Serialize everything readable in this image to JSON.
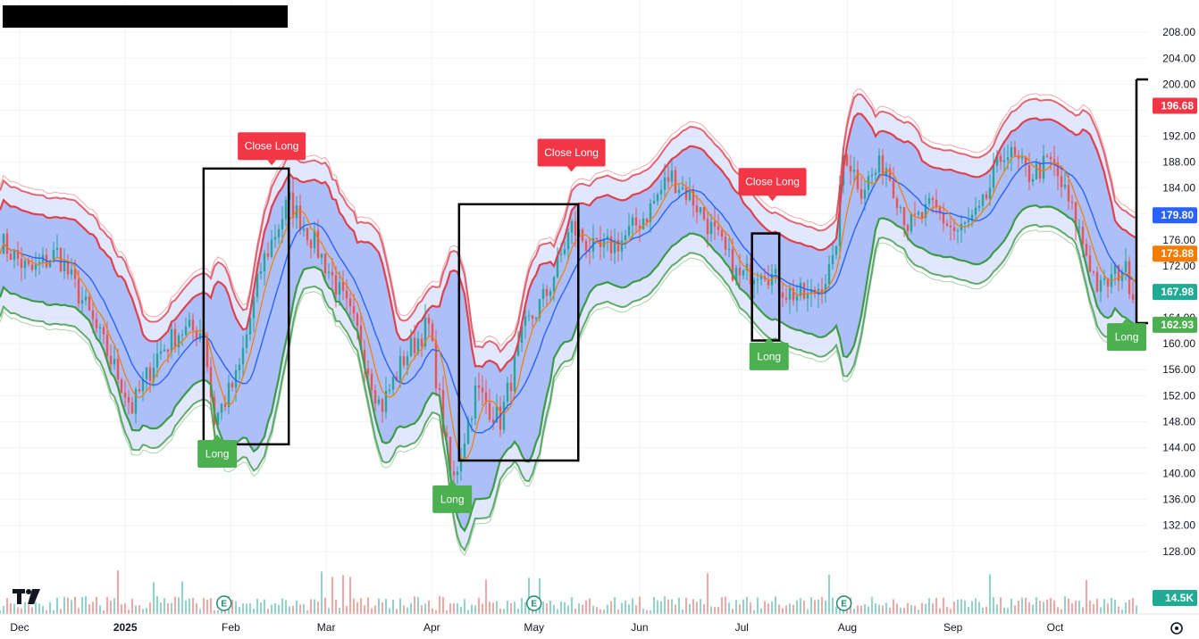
{
  "chart_data": {
    "type": "candlestick",
    "title": "",
    "y_ticks": [
      "208.00",
      "204.00",
      "200.00",
      "196.00",
      "192.00",
      "188.00",
      "184.00",
      "180.00",
      "176.00",
      "172.00",
      "168.00",
      "164.00",
      "160.00",
      "156.00",
      "152.00",
      "148.00",
      "144.00",
      "140.00",
      "136.00",
      "132.00",
      "128.00"
    ],
    "ylim": [
      125.5,
      210.5
    ],
    "x_ticks": [
      {
        "label": "Dec",
        "date": "2024-12-01"
      },
      {
        "label": "2025",
        "date": "2025-01-01"
      },
      {
        "label": "Feb",
        "date": "2025-02-01"
      },
      {
        "label": "Mar",
        "date": "2025-03-01"
      },
      {
        "label": "Apr",
        "date": "2025-04-01"
      },
      {
        "label": "May",
        "date": "2025-05-01"
      },
      {
        "label": "Jun",
        "date": "2025-06-01"
      },
      {
        "label": "Jul",
        "date": "2025-07-01"
      },
      {
        "label": "Aug",
        "date": "2025-08-01"
      },
      {
        "label": "Sep",
        "date": "2025-09-01"
      },
      {
        "label": "Oct",
        "date": "2025-10-01"
      }
    ],
    "price_path": [
      [
        "2024-11-25",
        176
      ],
      [
        "2024-12-04",
        171
      ],
      [
        "2024-12-12",
        174
      ],
      [
        "2024-12-20",
        166
      ],
      [
        "2024-12-30",
        155
      ],
      [
        "2025-01-03",
        150
      ],
      [
        "2025-01-10",
        158
      ],
      [
        "2025-01-17",
        162
      ],
      [
        "2025-01-24",
        162
      ],
      [
        "2025-01-27",
        148
      ],
      [
        "2025-02-03",
        155
      ],
      [
        "2025-02-10",
        172
      ],
      [
        "2025-02-18",
        182
      ],
      [
        "2025-02-25",
        176
      ],
      [
        "2025-03-03",
        170
      ],
      [
        "2025-03-10",
        162
      ],
      [
        "2025-03-17",
        150
      ],
      [
        "2025-03-24",
        158
      ],
      [
        "2025-03-31",
        163
      ],
      [
        "2025-04-07",
        138
      ],
      [
        "2025-04-14",
        153
      ],
      [
        "2025-04-21",
        148
      ],
      [
        "2025-04-28",
        162
      ],
      [
        "2025-05-05",
        168
      ],
      [
        "2025-05-12",
        178
      ],
      [
        "2025-05-19",
        174
      ],
      [
        "2025-05-27",
        176
      ],
      [
        "2025-06-03",
        180
      ],
      [
        "2025-06-10",
        186
      ],
      [
        "2025-06-17",
        182
      ],
      [
        "2025-06-24",
        176
      ],
      [
        "2025-06-30",
        170
      ],
      [
        "2025-07-07",
        172
      ],
      [
        "2025-07-14",
        168
      ],
      [
        "2025-07-21",
        167
      ],
      [
        "2025-07-28",
        172
      ],
      [
        "2025-07-31",
        190
      ],
      [
        "2025-08-05",
        184
      ],
      [
        "2025-08-12",
        188
      ],
      [
        "2025-08-19",
        178
      ],
      [
        "2025-08-26",
        181
      ],
      [
        "2025-09-02",
        177
      ],
      [
        "2025-09-09",
        180
      ],
      [
        "2025-09-16",
        190
      ],
      [
        "2025-09-23",
        186
      ],
      [
        "2025-09-30",
        188
      ],
      [
        "2025-10-07",
        179
      ],
      [
        "2025-10-14",
        168
      ],
      [
        "2025-10-21",
        172
      ],
      [
        "2025-10-24",
        168
      ]
    ],
    "earnings_dates": [
      "2025-01-30",
      "2025-05-01",
      "2025-07-31"
    ],
    "price_labels": [
      {
        "value": "196.68",
        "price": 196.68,
        "color": "#f23645"
      },
      {
        "value": "179.80",
        "price": 179.8,
        "color": "#2962ff"
      },
      {
        "value": "173.88",
        "price": 173.88,
        "color": "#f57c00"
      },
      {
        "value": "167.98",
        "price": 167.98,
        "color": "#22ab94"
      },
      {
        "value": "162.93",
        "price": 162.93,
        "color": "#4caf50"
      }
    ],
    "volume_label": "14.5K",
    "signals": [
      {
        "label": "Close Long",
        "type": "close",
        "date": "2025-02-13",
        "price": 187.5
      },
      {
        "label": "Long",
        "type": "long",
        "date": "2025-01-28",
        "price": 146
      },
      {
        "label": "Close Long",
        "type": "close",
        "date": "2025-05-12",
        "price": 186.5
      },
      {
        "label": "Long",
        "type": "long",
        "date": "2025-04-07",
        "price": 139
      },
      {
        "label": "Close Long",
        "type": "close",
        "date": "2025-07-10",
        "price": 182
      },
      {
        "label": "Long",
        "type": "long",
        "date": "2025-07-09",
        "price": 161
      },
      {
        "label": "Long",
        "type": "long",
        "date": "2025-10-22",
        "price": 164
      }
    ],
    "highlight_boxes": [
      {
        "start": "2025-01-24",
        "end": "2025-02-18",
        "high": 187,
        "low": 144.5
      },
      {
        "start": "2025-04-09",
        "end": "2025-05-14",
        "high": 181.5,
        "low": 142
      },
      {
        "start": "2025-07-04",
        "end": "2025-07-12",
        "high": 177,
        "low": 160.5
      }
    ],
    "colors": {
      "up": "#26a69a",
      "down": "#ef5350",
      "upper_band": "#e0404e",
      "lower_band": "#3d9a46",
      "basis": "#2962ff",
      "ma": "#f57c00",
      "inner_fill": "#6f8ff5",
      "outer_fill": "#c9d6fb"
    }
  },
  "header_box": {
    "color": "#000000"
  }
}
